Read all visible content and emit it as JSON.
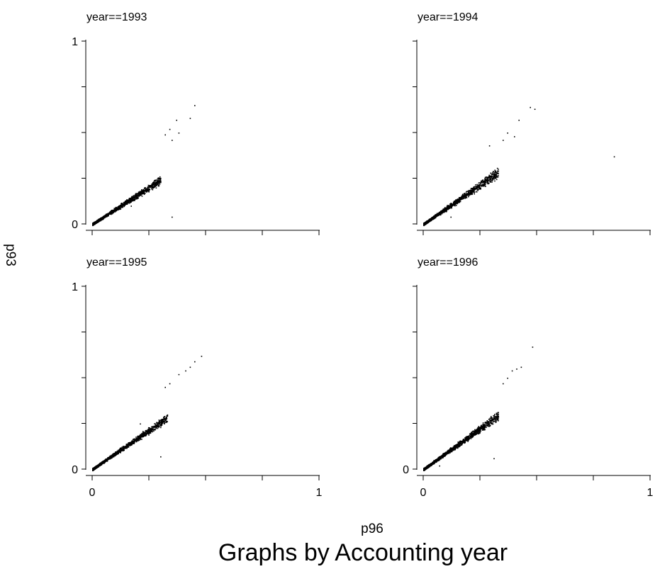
{
  "caption": "Graphs by Accounting year",
  "x_title": "p96",
  "y_title": "p93",
  "colors": {
    "points": "#000000",
    "axes": "#000000",
    "background": "#ffffff"
  },
  "chart_data": [
    {
      "type": "scatter",
      "title": "year==1993",
      "xlim": [
        0,
        1
      ],
      "ylim": [
        0,
        1
      ],
      "xticks": [
        0,
        0.25,
        0.5,
        0.75,
        1
      ],
      "yticks": [
        0,
        0.25,
        0.5,
        0.75,
        1
      ],
      "xtick_labels": [],
      "ytick_labels": [
        "0",
        "1"
      ],
      "grid": false,
      "cloud": {
        "n": 1400,
        "x_range": [
          0,
          0.3
        ],
        "ratio": [
          0.72,
          0.88
        ],
        "seed": 11
      },
      "points": [
        [
          0.37,
          0.57
        ],
        [
          0.43,
          0.58
        ],
        [
          0.45,
          0.65
        ],
        [
          0.34,
          0.52
        ],
        [
          0.38,
          0.5
        ],
        [
          0.32,
          0.49
        ],
        [
          0.35,
          0.46
        ],
        [
          0.28,
          0.2
        ],
        [
          0.17,
          0.1
        ],
        [
          0.35,
          0.04
        ]
      ]
    },
    {
      "type": "scatter",
      "title": "year==1994",
      "xlim": [
        0,
        1
      ],
      "ylim": [
        0,
        1
      ],
      "xticks": [
        0,
        0.25,
        0.5,
        0.75,
        1
      ],
      "yticks": [
        0,
        0.25,
        0.5,
        0.75,
        1
      ],
      "xtick_labels": [],
      "ytick_labels": [],
      "grid": false,
      "cloud": {
        "n": 1400,
        "x_range": [
          0,
          0.33
        ],
        "ratio": [
          0.76,
          0.96
        ],
        "seed": 23
      },
      "points": [
        [
          0.84,
          0.37
        ],
        [
          0.47,
          0.64
        ],
        [
          0.49,
          0.63
        ],
        [
          0.42,
          0.57
        ],
        [
          0.37,
          0.5
        ],
        [
          0.35,
          0.46
        ],
        [
          0.4,
          0.48
        ],
        [
          0.29,
          0.43
        ],
        [
          0.12,
          0.04
        ],
        [
          0.1,
          0.07
        ]
      ]
    },
    {
      "type": "scatter",
      "title": "year==1995",
      "xlim": [
        0,
        1
      ],
      "ylim": [
        0,
        1
      ],
      "xticks": [
        0,
        0.25,
        0.5,
        0.75,
        1
      ],
      "yticks": [
        0,
        0.25,
        0.5,
        0.75,
        1
      ],
      "xtick_labels": [
        "0",
        "1"
      ],
      "ytick_labels": [
        "0",
        "1"
      ],
      "grid": false,
      "cloud": {
        "n": 1400,
        "x_range": [
          0,
          0.33
        ],
        "ratio": [
          0.78,
          0.93
        ],
        "seed": 37
      },
      "points": [
        [
          0.48,
          0.62
        ],
        [
          0.45,
          0.59
        ],
        [
          0.43,
          0.56
        ],
        [
          0.41,
          0.54
        ],
        [
          0.38,
          0.52
        ],
        [
          0.34,
          0.47
        ],
        [
          0.32,
          0.45
        ],
        [
          0.3,
          0.07
        ],
        [
          0.21,
          0.25
        ]
      ]
    },
    {
      "type": "scatter",
      "title": "year==1996",
      "xlim": [
        0,
        1
      ],
      "ylim": [
        0,
        1
      ],
      "xticks": [
        0,
        0.25,
        0.5,
        0.75,
        1
      ],
      "yticks": [
        0,
        0.25,
        0.5,
        0.75,
        1
      ],
      "xtick_labels": [
        "0",
        "1"
      ],
      "ytick_labels": [
        "0"
      ],
      "grid": false,
      "cloud": {
        "n": 1500,
        "x_range": [
          0,
          0.33
        ],
        "ratio": [
          0.8,
          0.98
        ],
        "seed": 53
      },
      "points": [
        [
          0.48,
          0.67
        ],
        [
          0.43,
          0.56
        ],
        [
          0.41,
          0.55
        ],
        [
          0.39,
          0.54
        ],
        [
          0.37,
          0.5
        ],
        [
          0.35,
          0.47
        ],
        [
          0.31,
          0.06
        ],
        [
          0.07,
          0.02
        ]
      ]
    }
  ]
}
